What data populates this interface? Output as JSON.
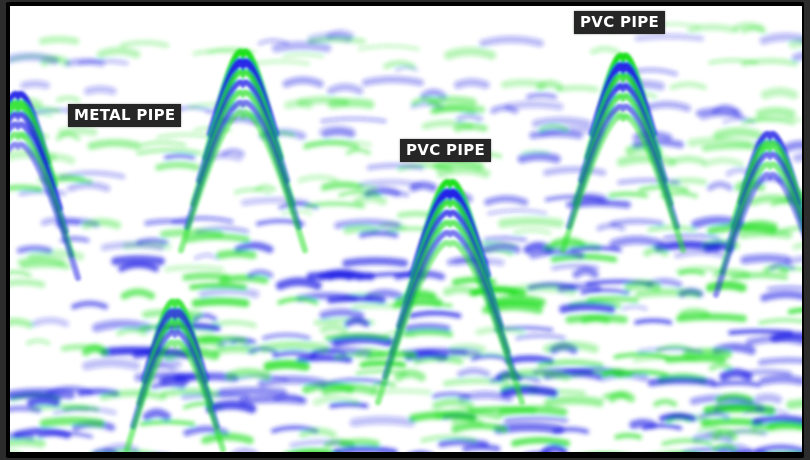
{
  "labels": {
    "metal_pipe": "METAL PIPE",
    "pvc_pipe_center": "PVC PIPE",
    "pvc_pipe_top": "PVC PIPE"
  },
  "colors": {
    "green": "#1fe01f",
    "blue": "#1a1ae6",
    "background": "#ffffff",
    "label_bg": "#262626",
    "label_text": "#ffffff",
    "frame": "#000000"
  }
}
